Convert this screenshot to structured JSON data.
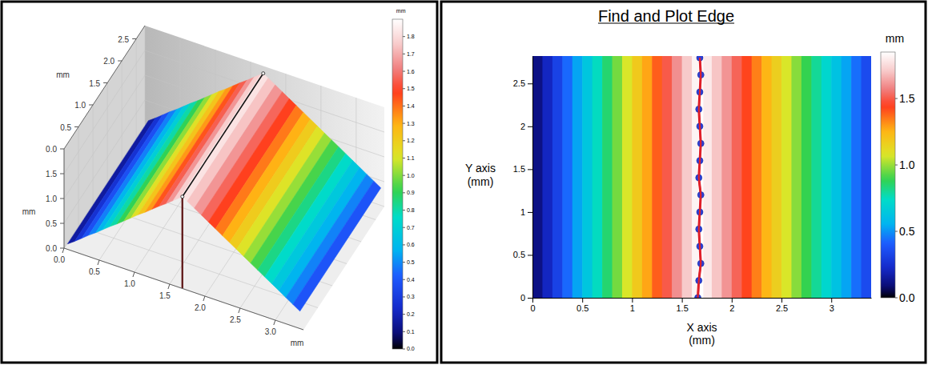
{
  "chart_data": [
    {
      "type": "surface3d",
      "xlabel": "mm",
      "ylabel": "mm",
      "zlabel": "mm",
      "xlim": [
        0,
        3.4
      ],
      "xticks": [
        {
          "value": 0,
          "label": "0.0"
        },
        0.5,
        {
          "value": 1,
          "label": "1.0"
        },
        1.5,
        {
          "value": 2,
          "label": "2.0"
        },
        2.5,
        {
          "value": 3,
          "label": "3.0"
        }
      ],
      "ylim": [
        0,
        2.8
      ],
      "yticks": [
        {
          "value": 0,
          "label": "0.0"
        },
        0.5,
        {
          "value": 1,
          "label": "1.0"
        },
        1.5,
        {
          "value": 2,
          "label": "2.0"
        },
        2.5
      ],
      "zlim": [
        0,
        2.0
      ],
      "zticks": [
        {
          "value": 0,
          "label": "0.0"
        },
        0.5,
        {
          "value": 1,
          "label": "1.0"
        },
        1.5
      ],
      "x": [
        0.05,
        0.15,
        0.25,
        0.35,
        0.45,
        0.55,
        0.65,
        0.75,
        0.85,
        0.95,
        1.05,
        1.15,
        1.25,
        1.35,
        1.45,
        1.55,
        1.65,
        1.68,
        1.75,
        1.85,
        1.95,
        2.05,
        2.15,
        2.25,
        2.35,
        2.45,
        2.55,
        2.65,
        2.75,
        2.85,
        2.95,
        3.05,
        3.15,
        3.25,
        3.35
      ],
      "z": [
        0.11,
        0.21,
        0.32,
        0.43,
        0.53,
        0.64,
        0.75,
        0.85,
        0.96,
        1.07,
        1.18,
        1.28,
        1.39,
        1.5,
        1.6,
        1.71,
        1.82,
        1.85,
        1.79,
        1.7,
        1.61,
        1.52,
        1.43,
        1.34,
        1.25,
        1.16,
        1.07,
        0.98,
        0.89,
        0.8,
        0.71,
        0.62,
        0.53,
        0.44,
        0.35
      ],
      "ridge": {
        "x": 1.68,
        "z": 1.85
      },
      "colorbar": {
        "label": "mm",
        "range": [
          0,
          1.9
        ],
        "ticks": [
          {
            "value": 0,
            "label": "0.0"
          },
          0.1,
          0.2,
          0.3,
          0.4,
          0.5,
          0.6,
          0.7,
          0.8,
          0.9,
          {
            "value": 1,
            "label": "1.0"
          },
          1.1,
          1.2,
          1.3,
          1.4,
          1.5,
          1.6,
          1.7,
          1.8
        ]
      }
    },
    {
      "type": "heatmap",
      "title": "Find and Plot Edge",
      "xlabel": "X axis\n(mm)",
      "ylabel": "Y axis\n(mm)",
      "xlim": [
        0,
        3.4
      ],
      "xticks": [
        0,
        0.5,
        1,
        1.5,
        2,
        2.5,
        3
      ],
      "ylim": [
        0,
        2.82
      ],
      "yticks": [
        0,
        0.5,
        1,
        1.5,
        2,
        2.5
      ],
      "x": [
        0.05,
        0.15,
        0.25,
        0.35,
        0.45,
        0.55,
        0.65,
        0.75,
        0.85,
        0.95,
        1.05,
        1.15,
        1.25,
        1.35,
        1.45,
        1.55,
        1.65,
        1.68,
        1.75,
        1.85,
        1.95,
        2.05,
        2.15,
        2.25,
        2.35,
        2.45,
        2.55,
        2.65,
        2.75,
        2.85,
        2.95,
        3.05,
        3.15,
        3.25,
        3.35
      ],
      "z": [
        0.11,
        0.21,
        0.32,
        0.43,
        0.53,
        0.64,
        0.75,
        0.85,
        0.96,
        1.07,
        1.18,
        1.28,
        1.39,
        1.5,
        1.6,
        1.71,
        1.82,
        1.85,
        1.79,
        1.7,
        1.61,
        1.52,
        1.43,
        1.34,
        1.25,
        1.16,
        1.07,
        0.98,
        0.89,
        0.8,
        0.71,
        0.62,
        0.53,
        0.44,
        0.35
      ],
      "edge": {
        "x": [
          1.66,
          1.67,
          1.69,
          1.68,
          1.67,
          1.68,
          1.69,
          1.67,
          1.68,
          1.69,
          1.68,
          1.67,
          1.68,
          1.69,
          1.68
        ],
        "y": [
          0,
          0.2,
          0.4,
          0.6,
          0.8,
          1.0,
          1.2,
          1.4,
          1.6,
          1.8,
          2.0,
          2.2,
          2.4,
          2.6,
          2.8
        ],
        "color": "#e0202a",
        "marker": "circle",
        "line_style": "solid"
      },
      "colorbar": {
        "label": "mm",
        "range": [
          0,
          1.85
        ],
        "ticks": [
          {
            "value": 0,
            "label": "0.0"
          },
          0.5,
          {
            "value": 1,
            "label": "1.0"
          },
          1.5
        ]
      }
    }
  ]
}
